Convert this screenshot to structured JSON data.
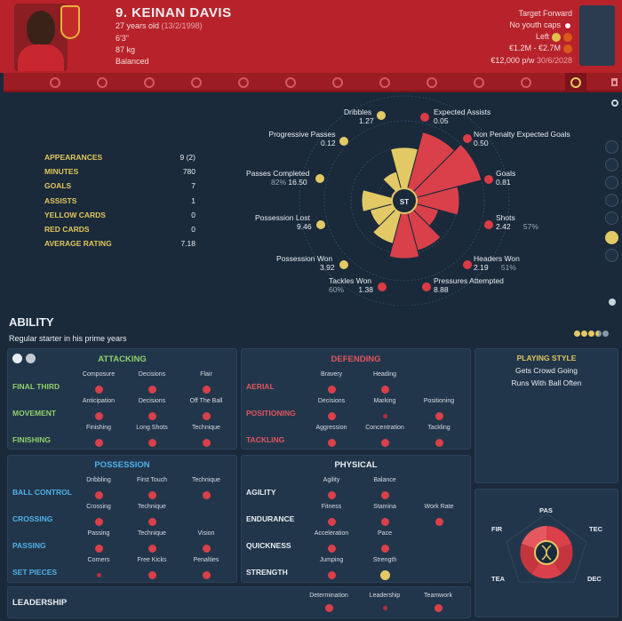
{
  "player": {
    "name": "9. KEINAN DAVIS",
    "age": "27 years old",
    "dob": "(13/2/1998)",
    "height": "6'3\"",
    "weight": "87 kg",
    "personality": "Balanced",
    "role": "Target Forward",
    "caps": "No youth caps",
    "foot": "Left",
    "value": "€1.2M - €2.7M",
    "wage": "€12,000 p/w",
    "contract": "30/6/2028"
  },
  "stats": [
    {
      "label": "APPEARANCES",
      "value": "9 (2)"
    },
    {
      "label": "MINUTES",
      "value": "780"
    },
    {
      "label": "GOALS",
      "value": "7"
    },
    {
      "label": "ASSISTS",
      "value": "1"
    },
    {
      "label": "YELLOW CARDS",
      "value": "0"
    },
    {
      "label": "RED CARDS",
      "value": "0"
    },
    {
      "label": "AVERAGE RATING",
      "value": "7.18"
    }
  ],
  "radar": {
    "center": "ST",
    "metrics": [
      {
        "name": "Dribbles",
        "value": "1.27",
        "pct": ""
      },
      {
        "name": "Expected Assists",
        "value": "0.05",
        "pct": ""
      },
      {
        "name": "Progressive Passes",
        "value": "0.12",
        "pct": ""
      },
      {
        "name": "Non Penalty Expected Goals",
        "value": "0.50",
        "pct": ""
      },
      {
        "name": "Passes Completed",
        "value": "16.50",
        "pct": "82%"
      },
      {
        "name": "Goals",
        "value": "0.81",
        "pct": ""
      },
      {
        "name": "Possession Lost",
        "value": "9.46",
        "pct": ""
      },
      {
        "name": "Shots",
        "value": "2.42",
        "pct": "57%"
      },
      {
        "name": "Possession Won",
        "value": "3.92",
        "pct": ""
      },
      {
        "name": "Headers Won",
        "value": "2.19",
        "pct": "51%"
      },
      {
        "name": "Tackles Won",
        "value": "1.38",
        "pct": "60%"
      },
      {
        "name": "Pressures Attempted",
        "value": "8.88",
        "pct": ""
      }
    ]
  },
  "ability": {
    "title": "ABILITY",
    "subtitle": "Regular starter in his prime years",
    "stars": 3.5
  },
  "attacking": {
    "title": "ATTACKING",
    "rows": [
      {
        "cat": "FINAL THIRD",
        "attrs": [
          "Composure",
          "Decisions",
          "Flair"
        ],
        "dots": [
          "r",
          "r",
          "r"
        ]
      },
      {
        "cat": "MOVEMENT",
        "attrs": [
          "Anticipation",
          "Decisions",
          "Off The Ball"
        ],
        "dots": [
          "r",
          "r",
          "r"
        ]
      },
      {
        "cat": "FINISHING",
        "attrs": [
          "Finishing",
          "Long Shots",
          "Technique"
        ],
        "dots": [
          "r",
          "r",
          "r"
        ]
      }
    ]
  },
  "defending": {
    "title": "DEFENDING",
    "rows": [
      {
        "cat": "AERIAL",
        "attrs": [
          "Bravery",
          "Heading"
        ],
        "dots": [
          "r",
          "r"
        ]
      },
      {
        "cat": "POSITIONING",
        "attrs": [
          "Decisions",
          "Marking",
          "Positioning"
        ],
        "dots": [
          "r",
          "s",
          "r"
        ]
      },
      {
        "cat": "TACKLING",
        "attrs": [
          "Aggression",
          "Concentration",
          "Tackling"
        ],
        "dots": [
          "r",
          "r",
          "r"
        ]
      }
    ]
  },
  "possession": {
    "title": "POSSESSION",
    "rows": [
      {
        "cat": "BALL CONTROL",
        "attrs": [
          "Dribbling",
          "First Touch",
          "Technique"
        ],
        "dots": [
          "r",
          "r",
          "r"
        ]
      },
      {
        "cat": "CROSSING",
        "attrs": [
          "Crossing",
          "Technique"
        ],
        "dots": [
          "r",
          "r"
        ]
      },
      {
        "cat": "PASSING",
        "attrs": [
          "Passing",
          "Technique",
          "Vision"
        ],
        "dots": [
          "r",
          "r",
          "r"
        ]
      },
      {
        "cat": "SET PIECES",
        "attrs": [
          "Corners",
          "Free Kicks",
          "Penalties"
        ],
        "dots": [
          "s",
          "r",
          "r"
        ]
      }
    ]
  },
  "physical": {
    "title": "PHYSICAL",
    "rows": [
      {
        "cat": "AGILITY",
        "attrs": [
          "Agility",
          "Balance"
        ],
        "dots": [
          "r",
          "r"
        ]
      },
      {
        "cat": "ENDURANCE",
        "attrs": [
          "Fitness",
          "Stamina",
          "Work Rate"
        ],
        "dots": [
          "r",
          "r",
          "r"
        ]
      },
      {
        "cat": "QUICKNESS",
        "attrs": [
          "Acceleration",
          "Pace"
        ],
        "dots": [
          "r",
          "r"
        ]
      },
      {
        "cat": "STRENGTH",
        "attrs": [
          "Jumping",
          "Strength"
        ],
        "dots": [
          "r",
          "y"
        ]
      }
    ]
  },
  "leadership": {
    "cat": "LEADERSHIP",
    "attrs": [
      "Determination",
      "Leadership",
      "Teamwork"
    ],
    "dots": [
      "r",
      "s",
      "r"
    ]
  },
  "playing_style": {
    "title": "PLAYING STYLE",
    "items": [
      "Gets Crowd Going",
      "Runs With Ball Often"
    ]
  },
  "mini_radar": {
    "labels": [
      "PAS",
      "FIR",
      "TEC",
      "TEA",
      "DEC"
    ]
  },
  "colors": {
    "header_red": "#b8232b",
    "accent_yellow": "#e1c55c",
    "attr_red": "#d9404a",
    "attack_green": "#8fcf6b",
    "defend_red": "#e0555d",
    "possession_blue": "#4fb1e8"
  }
}
